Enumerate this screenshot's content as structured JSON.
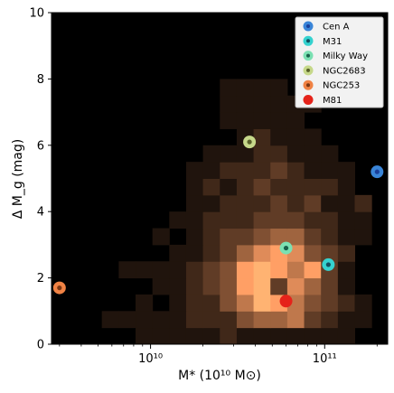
{
  "chart_data": {
    "type": "heatmap",
    "xlabel": "M* (10¹⁰ M⊙)",
    "ylabel": "Δ M_g (mag)",
    "xscale": "log",
    "xlim": [
      2700000000.0,
      230000000000.0
    ],
    "ylim": [
      0,
      10
    ],
    "x_ticks": [
      {
        "value": 10000000000.0,
        "label": "10¹⁰"
      },
      {
        "value": 100000000000.0,
        "label": "10¹¹"
      }
    ],
    "y_ticks": [
      {
        "value": 0,
        "label": "0"
      },
      {
        "value": 2,
        "label": "2"
      },
      {
        "value": 4,
        "label": "4"
      },
      {
        "value": 6,
        "label": "6"
      },
      {
        "value": 8,
        "label": "8"
      },
      {
        "value": 10,
        "label": "10"
      }
    ],
    "background_color": "#000000",
    "heatmap": {
      "colormap": "copper",
      "x_bins_log": {
        "start": 9.43,
        "width": 0.0968,
        "count": 20
      },
      "y_bins": {
        "start": 0,
        "width": 0.5,
        "count": 20
      },
      "cells": [
        [
          5,
          0,
          1
        ],
        [
          6,
          0,
          1
        ],
        [
          7,
          0,
          1
        ],
        [
          8,
          0,
          1
        ],
        [
          9,
          0,
          1
        ],
        [
          10,
          0,
          2
        ],
        [
          11,
          0,
          1
        ],
        [
          12,
          0,
          1
        ],
        [
          13,
          0,
          1
        ],
        [
          14,
          0,
          1
        ],
        [
          15,
          0,
          1
        ],
        [
          16,
          0,
          1
        ],
        [
          17,
          0,
          1
        ],
        [
          3,
          1,
          1
        ],
        [
          4,
          1,
          1
        ],
        [
          5,
          1,
          1
        ],
        [
          6,
          1,
          1
        ],
        [
          7,
          1,
          1
        ],
        [
          8,
          1,
          2
        ],
        [
          9,
          1,
          2
        ],
        [
          10,
          1,
          2
        ],
        [
          11,
          1,
          4
        ],
        [
          12,
          1,
          5
        ],
        [
          13,
          1,
          5
        ],
        [
          14,
          1,
          6
        ],
        [
          15,
          1,
          3
        ],
        [
          16,
          1,
          2
        ],
        [
          17,
          1,
          1
        ],
        [
          18,
          1,
          1
        ],
        [
          5,
          2,
          1
        ],
        [
          7,
          2,
          1
        ],
        [
          8,
          2,
          2
        ],
        [
          9,
          2,
          2
        ],
        [
          10,
          2,
          4
        ],
        [
          11,
          2,
          6
        ],
        [
          12,
          2,
          9
        ],
        [
          13,
          2,
          8
        ],
        [
          14,
          2,
          6
        ],
        [
          15,
          2,
          4
        ],
        [
          16,
          2,
          3
        ],
        [
          17,
          2,
          2
        ],
        [
          18,
          2,
          1
        ],
        [
          6,
          3,
          1
        ],
        [
          7,
          3,
          1
        ],
        [
          8,
          3,
          2
        ],
        [
          9,
          3,
          3
        ],
        [
          10,
          3,
          4
        ],
        [
          11,
          3,
          8
        ],
        [
          12,
          3,
          9
        ],
        [
          13,
          3,
          3
        ],
        [
          14,
          3,
          7
        ],
        [
          15,
          3,
          5
        ],
        [
          16,
          3,
          3
        ],
        [
          17,
          3,
          1
        ],
        [
          4,
          4,
          1
        ],
        [
          5,
          4,
          1
        ],
        [
          6,
          4,
          1
        ],
        [
          7,
          4,
          1
        ],
        [
          8,
          4,
          2
        ],
        [
          9,
          4,
          3
        ],
        [
          10,
          4,
          4
        ],
        [
          11,
          4,
          8
        ],
        [
          12,
          4,
          9
        ],
        [
          13,
          4,
          8
        ],
        [
          14,
          4,
          6
        ],
        [
          15,
          4,
          8
        ],
        [
          16,
          4,
          3
        ],
        [
          17,
          4,
          1
        ],
        [
          7,
          5,
          1
        ],
        [
          8,
          5,
          1
        ],
        [
          9,
          5,
          2
        ],
        [
          10,
          5,
          3
        ],
        [
          11,
          5,
          5
        ],
        [
          12,
          5,
          7
        ],
        [
          13,
          5,
          8
        ],
        [
          14,
          5,
          7
        ],
        [
          15,
          5,
          4
        ],
        [
          16,
          5,
          3
        ],
        [
          17,
          5,
          2
        ],
        [
          6,
          6,
          1
        ],
        [
          8,
          6,
          1
        ],
        [
          9,
          6,
          2
        ],
        [
          10,
          6,
          3
        ],
        [
          11,
          6,
          3
        ],
        [
          12,
          6,
          4
        ],
        [
          13,
          6,
          5
        ],
        [
          14,
          6,
          5
        ],
        [
          15,
          6,
          3
        ],
        [
          16,
          6,
          2
        ],
        [
          17,
          6,
          1
        ],
        [
          18,
          6,
          1
        ],
        [
          7,
          7,
          1
        ],
        [
          8,
          7,
          1
        ],
        [
          9,
          7,
          2
        ],
        [
          10,
          7,
          2
        ],
        [
          11,
          7,
          2
        ],
        [
          12,
          7,
          3
        ],
        [
          13,
          7,
          3
        ],
        [
          14,
          7,
          3
        ],
        [
          15,
          7,
          2
        ],
        [
          16,
          7,
          2
        ],
        [
          17,
          7,
          1
        ],
        [
          18,
          7,
          1
        ],
        [
          8,
          8,
          1
        ],
        [
          9,
          8,
          1
        ],
        [
          10,
          8,
          2
        ],
        [
          11,
          8,
          2
        ],
        [
          12,
          8,
          2
        ],
        [
          13,
          8,
          3
        ],
        [
          14,
          8,
          2
        ],
        [
          15,
          8,
          3
        ],
        [
          16,
          8,
          1
        ],
        [
          17,
          8,
          1
        ],
        [
          18,
          8,
          2
        ],
        [
          8,
          9,
          1
        ],
        [
          9,
          9,
          2
        ],
        [
          10,
          9,
          1
        ],
        [
          11,
          9,
          2
        ],
        [
          12,
          9,
          3
        ],
        [
          13,
          9,
          2
        ],
        [
          14,
          9,
          2
        ],
        [
          15,
          9,
          2
        ],
        [
          16,
          9,
          2
        ],
        [
          17,
          9,
          1
        ],
        [
          8,
          10,
          1
        ],
        [
          9,
          10,
          1
        ],
        [
          10,
          10,
          2
        ],
        [
          11,
          10,
          2
        ],
        [
          12,
          10,
          2
        ],
        [
          13,
          10,
          3
        ],
        [
          14,
          10,
          2
        ],
        [
          15,
          10,
          1
        ],
        [
          16,
          10,
          1
        ],
        [
          17,
          10,
          1
        ],
        [
          9,
          11,
          1
        ],
        [
          10,
          11,
          1
        ],
        [
          11,
          11,
          1
        ],
        [
          12,
          11,
          2
        ],
        [
          13,
          11,
          2
        ],
        [
          14,
          11,
          1
        ],
        [
          15,
          11,
          1
        ],
        [
          16,
          11,
          1
        ],
        [
          11,
          12,
          1
        ],
        [
          12,
          12,
          2
        ],
        [
          13,
          12,
          1
        ],
        [
          14,
          12,
          1
        ],
        [
          15,
          12,
          1
        ],
        [
          10,
          13,
          1
        ],
        [
          11,
          13,
          1
        ],
        [
          12,
          13,
          1
        ],
        [
          13,
          13,
          1
        ],
        [
          14,
          13,
          1
        ],
        [
          10,
          14,
          1
        ],
        [
          11,
          14,
          1
        ],
        [
          12,
          14,
          1
        ],
        [
          13,
          14,
          1
        ],
        [
          14,
          14,
          1
        ],
        [
          15,
          14,
          1
        ],
        [
          10,
          15,
          1
        ],
        [
          11,
          15,
          1
        ],
        [
          12,
          15,
          1
        ],
        [
          13,
          15,
          1
        ]
      ],
      "max_count": 10
    },
    "series": [
      {
        "name": "Cen A",
        "x": 200000000000.0,
        "y": 5.2,
        "color": "#3a85d8",
        "center": "#1a3f9a"
      },
      {
        "name": "M31",
        "x": 105000000000.0,
        "y": 2.4,
        "color": "#35d2cf",
        "center": "#124f60"
      },
      {
        "name": "Milky Way",
        "x": 60000000000.0,
        "y": 2.9,
        "color": "#7be0b2",
        "center": "#19604a"
      },
      {
        "name": "NGC2683",
        "x": 37000000000.0,
        "y": 6.1,
        "color": "#c6d88a",
        "center": "#58602a"
      },
      {
        "name": "NGC253",
        "x": 3000000000.0,
        "y": 1.7,
        "color": "#f08244",
        "center": "#7a3612"
      },
      {
        "name": "M81",
        "x": 60000000000.0,
        "y": 1.3,
        "color": "#e5231a",
        "center": "#e5231a"
      }
    ],
    "legend_position": "top-right"
  }
}
